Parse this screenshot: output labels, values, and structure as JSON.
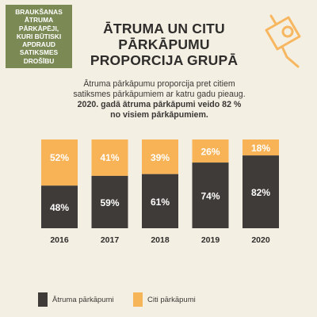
{
  "badge": "BRAUKŠANAS\nĀTRUMA\nPĀRKĀPĒJI,\nKURI BŪTISKI\nAPDRAUD\nSATIKSMES\nDROŠĪBU",
  "title": "ĀTRUMA UN CITU\nPĀRKĀPUMU\nPROPORCIJA GRUPĀ",
  "description": "Ātruma pārkāpumu proporcija pret citiem satiksmes pārkāpumiem ar katru gadu pieaug.",
  "highlight": "2020. gadā ātruma pārkāpumi veido 82 % no visiem pārkāpumiem.",
  "colors": {
    "speed": "#3f3b38",
    "other": "#f7ae4a",
    "badge": "#7b8a54",
    "background": "#f4efe3"
  },
  "chart_data": {
    "type": "bar",
    "stacked": true,
    "percent_stacked": true,
    "categories": [
      "2016",
      "2017",
      "2018",
      "2019",
      "2020"
    ],
    "series": [
      {
        "name": "Ātruma pārkāpumi",
        "values": [
          48,
          59,
          61,
          74,
          82
        ]
      },
      {
        "name": "Citi pārkāpumi",
        "values": [
          52,
          41,
          39,
          26,
          18
        ]
      }
    ],
    "unit": "%",
    "legend": "bottom",
    "grid": false
  },
  "legend_items": [
    {
      "name": "Ātruma pārkāpumi",
      "color": "#3f3b38"
    },
    {
      "name": "Citi pārkāpumi",
      "color": "#f7ae4a"
    }
  ]
}
